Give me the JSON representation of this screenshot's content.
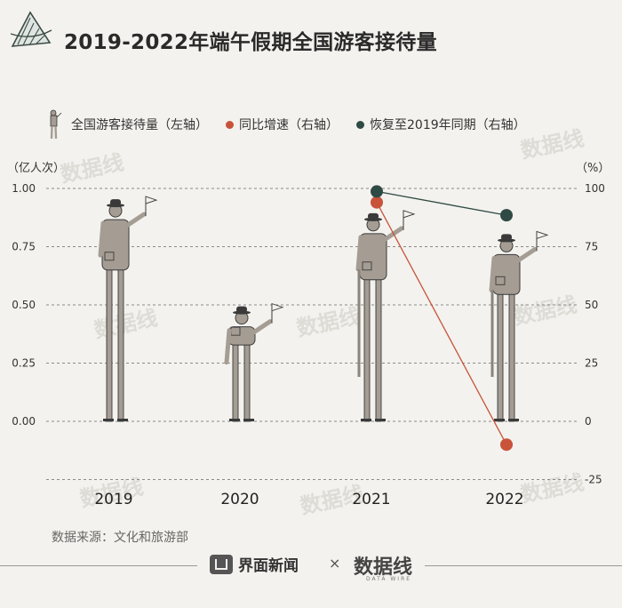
{
  "header": {
    "title": "2019-2022年端午假期全国游客接待量"
  },
  "legend": [
    {
      "label": "全国游客接待量（左轴）",
      "icon": "person-icon",
      "color": "#a59d94"
    },
    {
      "label": "同比增速（右轴）",
      "icon": "dot",
      "color": "#c8533a"
    },
    {
      "label": "恢复至2019年同期（右轴）",
      "icon": "dot",
      "color": "#2f4a44"
    }
  ],
  "source": "数据来源：文化和旅游部",
  "footer": {
    "brand_left": "界面新闻",
    "separator": "×",
    "brand_right": "数据线",
    "brand_right_sub": "DATA WIRE"
  },
  "chart_data": {
    "type": "bar",
    "categories": [
      "2019",
      "2020",
      "2021",
      "2022"
    ],
    "series": [
      {
        "name": "全国游客接待量（左轴）",
        "axis": "left",
        "values": [
          0.95,
          0.49,
          0.89,
          0.8
        ],
        "color": "#a59d94"
      },
      {
        "name": "同比增速（右轴）",
        "axis": "right",
        "type": "line",
        "values": [
          null,
          null,
          94,
          -10
        ],
        "color": "#c8533a"
      },
      {
        "name": "恢复至2019年同期（右轴）",
        "axis": "right",
        "type": "line",
        "values": [
          null,
          null,
          98.7,
          88.5
        ],
        "color": "#2f4a44"
      }
    ],
    "left_axis": {
      "label": "（亿人次）",
      "ticks": [
        "1.00",
        "0.75",
        "0.50",
        "0.25",
        "0.00"
      ],
      "range": [
        0,
        1.0
      ]
    },
    "right_axis": {
      "label": "（%）",
      "ticks": [
        "100",
        "75",
        "50",
        "25",
        "0",
        "-25"
      ],
      "range": [
        -25,
        100
      ]
    },
    "grid": true,
    "legend_position": "top"
  },
  "watermark": "数据线"
}
